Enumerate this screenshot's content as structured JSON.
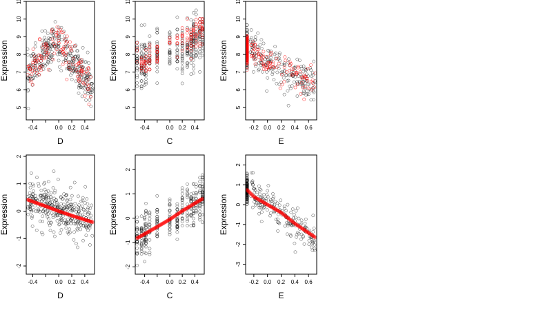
{
  "colors": {
    "observed": "#000000",
    "fitted": "#ff0000",
    "frame": "#000000"
  },
  "chart_data": [
    {
      "type": "scatter",
      "row": 1,
      "col": 1,
      "xlabel": "D",
      "ylabel": "Expression",
      "xlim": [
        -0.5,
        0.55
      ],
      "ylim": [
        4.3,
        11
      ],
      "xticks": [
        -0.4,
        -0.2,
        0.0,
        0.2,
        0.4
      ],
      "xtick_labels": [
        "-0.4",
        "",
        "0.0",
        "0.2",
        "0.4"
      ],
      "yticks": [
        5,
        6,
        7,
        8,
        9,
        10,
        11
      ],
      "ytick_labels": [
        "5",
        "6",
        "7",
        "8",
        "9",
        "10",
        "11"
      ],
      "observed": {
        "x_range": [
          -0.48,
          0.52
        ],
        "trend": [
          [
            -0.48,
            6.8
          ],
          [
            -0.1,
            8.6
          ],
          [
            0.0,
            8.7
          ],
          [
            0.2,
            7.6
          ],
          [
            0.52,
            6.2
          ]
        ],
        "spread": 1.0,
        "n": 320
      },
      "fitted": {
        "x_range": [
          -0.48,
          0.52
        ],
        "trend": [
          [
            -0.48,
            6.8
          ],
          [
            -0.1,
            8.6
          ],
          [
            0.0,
            8.7
          ],
          [
            0.2,
            7.6
          ],
          [
            0.52,
            6.2
          ]
        ],
        "spread": 0.9,
        "n": 130
      }
    },
    {
      "type": "scatter",
      "row": 1,
      "col": 2,
      "xlabel": "C",
      "ylabel": "Expression",
      "xlim": [
        -0.55,
        0.55
      ],
      "ylim": [
        4.3,
        11
      ],
      "xticks": [
        -0.4,
        -0.2,
        0.0,
        0.2,
        0.4
      ],
      "xtick_labels": [
        "-0.4",
        "",
        "0.0",
        "0.2",
        "0.4"
      ],
      "yticks": [
        5,
        6,
        7,
        8,
        9,
        10,
        11
      ],
      "ytick_labels": [
        "5",
        "6",
        "7",
        "8",
        "9",
        "10",
        "11"
      ],
      "observed": {
        "x_values": [
          -0.52,
          -0.45,
          -0.4,
          -0.38,
          -0.32,
          -0.2,
          0.0,
          0.12,
          0.2,
          0.28,
          0.34,
          0.38,
          0.42,
          0.48,
          0.52
        ],
        "trend": [
          [
            -0.52,
            7.5
          ],
          [
            -0.38,
            7.4
          ],
          [
            0.0,
            8.2
          ],
          [
            0.3,
            8.5
          ],
          [
            0.52,
            9.0
          ]
        ],
        "spread": 1.3,
        "n": 330
      },
      "fitted": {
        "x_values": [
          -0.52,
          -0.45,
          -0.4,
          -0.38,
          -0.32,
          -0.2,
          0.0,
          0.12,
          0.2,
          0.28,
          0.34,
          0.38,
          0.42,
          0.48,
          0.52
        ],
        "trend": [
          [
            -0.52,
            8.0
          ],
          [
            -0.4,
            7.5
          ],
          [
            0.0,
            8.6
          ],
          [
            0.3,
            8.9
          ],
          [
            0.52,
            9.5
          ]
        ],
        "spread": 0.8,
        "n": 130
      }
    },
    {
      "type": "scatter",
      "row": 1,
      "col": 3,
      "xlabel": "E",
      "ylabel": "Expression",
      "xlim": [
        -0.32,
        0.72
      ],
      "ylim": [
        4.3,
        11
      ],
      "xticks": [
        -0.2,
        0.0,
        0.2,
        0.4,
        0.6
      ],
      "xtick_labels": [
        "-0.2",
        "0.0",
        "0.2",
        "0.4",
        "0.6"
      ],
      "yticks": [
        5,
        6,
        7,
        8,
        9,
        10,
        11
      ],
      "ytick_labels": [
        "5",
        "6",
        "7",
        "8",
        "9",
        "10",
        "11"
      ],
      "observed": {
        "cluster_x": -0.3,
        "x_range": [
          -0.25,
          0.7
        ],
        "trend": [
          [
            -0.3,
            8.4
          ],
          [
            0.0,
            7.5
          ],
          [
            0.4,
            6.8
          ],
          [
            0.7,
            6.4
          ]
        ],
        "spread": 1.0,
        "n": 300
      },
      "fitted": {
        "cluster_x": -0.3,
        "x_range": [
          -0.25,
          0.7
        ],
        "trend": [
          [
            -0.3,
            8.4
          ],
          [
            0.0,
            7.5
          ],
          [
            0.4,
            6.8
          ],
          [
            0.7,
            6.4
          ]
        ],
        "spread": 0.7,
        "n": 150
      }
    },
    {
      "type": "scatter",
      "row": 2,
      "col": 1,
      "xlabel": "D",
      "ylabel": "Expression",
      "xlim": [
        -0.5,
        0.55
      ],
      "ylim": [
        -2.3,
        2.05
      ],
      "xticks": [
        -0.4,
        -0.2,
        0.0,
        0.2,
        0.4
      ],
      "xtick_labels": [
        "-0.4",
        "",
        "0.0",
        "0.2",
        "0.4"
      ],
      "yticks": [
        -2,
        -1,
        0,
        1,
        2
      ],
      "ytick_labels": [
        "-2",
        "-1",
        "0",
        "1",
        "2"
      ],
      "observed": {
        "x_range": [
          -0.48,
          0.52
        ],
        "trend": [
          [
            -0.48,
            0.4
          ],
          [
            0.52,
            -0.4
          ]
        ],
        "spread": 0.75,
        "n": 330
      },
      "fitted_line": [
        [
          -0.48,
          0.42
        ],
        [
          -0.25,
          0.22
        ],
        [
          0.0,
          0.0
        ],
        [
          0.25,
          -0.2
        ],
        [
          0.52,
          -0.4
        ]
      ]
    },
    {
      "type": "scatter",
      "row": 2,
      "col": 2,
      "xlabel": "C",
      "ylabel": "Expression",
      "xlim": [
        -0.55,
        0.55
      ],
      "ylim": [
        -2.3,
        2.6
      ],
      "xticks": [
        -0.4,
        -0.2,
        0.0,
        0.2,
        0.4
      ],
      "xtick_labels": [
        "-0.4",
        "",
        "0.0",
        "0.2",
        "0.4"
      ],
      "yticks": [
        -2,
        -1,
        0,
        1,
        2
      ],
      "ytick_labels": [
        "-2",
        "-1",
        "0",
        "1",
        "2"
      ],
      "observed": {
        "x_values": [
          -0.52,
          -0.45,
          -0.4,
          -0.38,
          -0.32,
          -0.2,
          0.0,
          0.12,
          0.2,
          0.28,
          0.34,
          0.38,
          0.42,
          0.48,
          0.52
        ],
        "trend": [
          [
            -0.52,
            -0.8
          ],
          [
            0.0,
            0.0
          ],
          [
            0.52,
            0.8
          ]
        ],
        "spread": 0.8,
        "n": 330
      },
      "fitted_line": [
        [
          -0.52,
          -0.82
        ],
        [
          -0.3,
          -0.5
        ],
        [
          0.0,
          -0.05
        ],
        [
          0.2,
          0.3
        ],
        [
          0.52,
          0.8
        ]
      ]
    },
    {
      "type": "scatter",
      "row": 2,
      "col": 3,
      "xlabel": "E",
      "ylabel": "Expression",
      "xlim": [
        -0.32,
        0.72
      ],
      "ylim": [
        -3.5,
        2.5
      ],
      "xticks": [
        -0.2,
        0.0,
        0.2,
        0.4,
        0.6
      ],
      "xtick_labels": [
        "-0.2",
        "0.0",
        "0.2",
        "0.4",
        "0.6"
      ],
      "yticks": [
        -3,
        -2,
        -1,
        0,
        1,
        2
      ],
      "ytick_labels": [
        "-3",
        "-2",
        "-1",
        "0",
        "1",
        "2"
      ],
      "observed": {
        "cluster_x": -0.3,
        "x_range": [
          -0.25,
          0.7
        ],
        "trend": [
          [
            -0.3,
            0.8
          ],
          [
            0.0,
            0.0
          ],
          [
            0.4,
            -1.0
          ],
          [
            0.7,
            -1.7
          ]
        ],
        "spread": 0.75,
        "n": 300
      },
      "fitted_line": [
        [
          -0.3,
          0.75
        ],
        [
          -0.2,
          0.4
        ],
        [
          0.0,
          0.0
        ],
        [
          0.2,
          -0.4
        ],
        [
          0.4,
          -0.95
        ],
        [
          0.7,
          -1.65
        ]
      ]
    }
  ]
}
